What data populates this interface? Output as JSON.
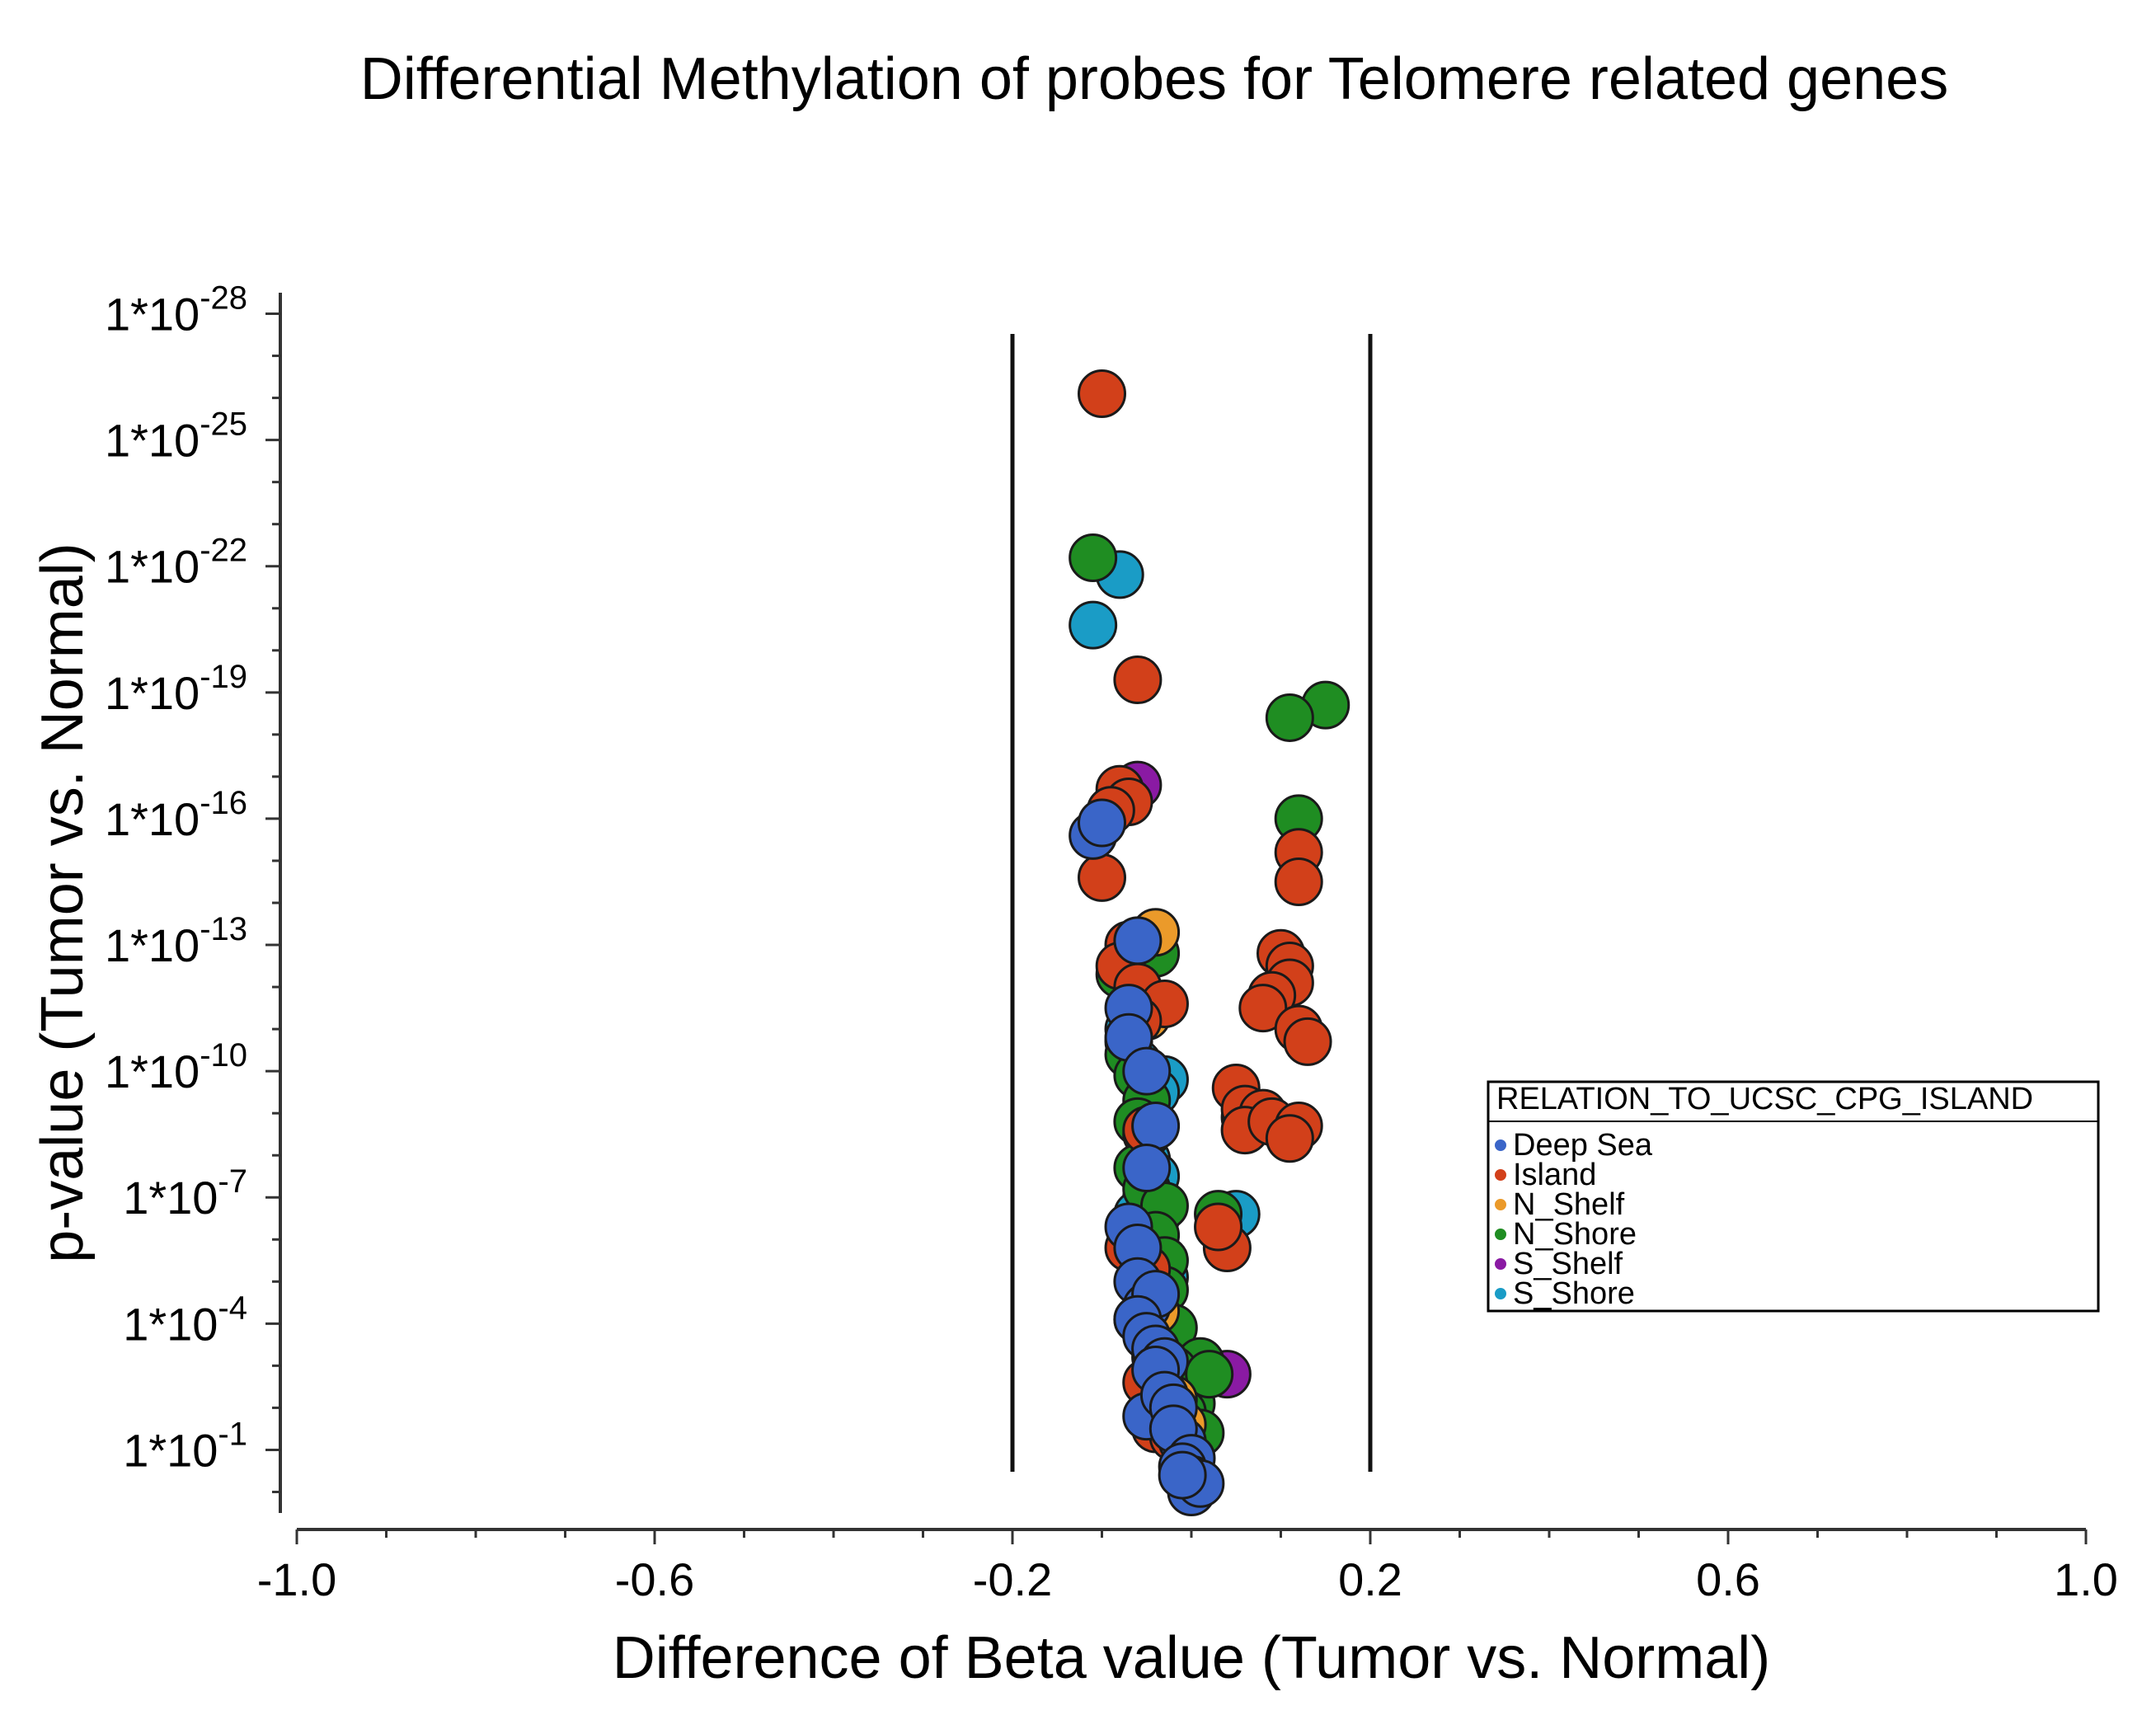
{
  "chart_data": {
    "type": "scatter",
    "title": "Differential Methylation of probes for Telomere related genes",
    "xlabel": "Difference of Beta value (Tumor vs. Normal)",
    "ylabel": "p-value (Tumor vs. Normal)",
    "xlim": [
      -1.0,
      1.0
    ],
    "ylim_neglog10": [
      -0.5,
      28.5
    ],
    "x_ticks": [
      "-1.0",
      "-0.6",
      "-0.2",
      "0.2",
      "0.6",
      "1.0"
    ],
    "x_tick_values": [
      -1.0,
      -0.6,
      -0.2,
      0.2,
      0.6,
      1.0
    ],
    "y_ticks": [
      {
        "base": "1*10",
        "exp": "-1",
        "neglog10": 1
      },
      {
        "base": "1*10",
        "exp": "-4",
        "neglog10": 4
      },
      {
        "base": "1*10",
        "exp": "-7",
        "neglog10": 7
      },
      {
        "base": "1*10",
        "exp": "-10",
        "neglog10": 10
      },
      {
        "base": "1*10",
        "exp": "-13",
        "neglog10": 13
      },
      {
        "base": "1*10",
        "exp": "-16",
        "neglog10": 16
      },
      {
        "base": "1*10",
        "exp": "-19",
        "neglog10": 19
      },
      {
        "base": "1*10",
        "exp": "-22",
        "neglog10": 22
      },
      {
        "base": "1*10",
        "exp": "-25",
        "neglog10": 25
      },
      {
        "base": "1*10",
        "exp": "-28",
        "neglog10": 28
      }
    ],
    "threshold_lines_x": [
      -0.2,
      0.2
    ],
    "legend": {
      "title": "RELATION_TO_UCSC_CPG_ISLAND",
      "position": "right",
      "entries": [
        {
          "name": "Deep Sea",
          "color": "#3a65c8"
        },
        {
          "name": "Island",
          "color": "#d2401a"
        },
        {
          "name": "N_Shelf",
          "color": "#eb9a2a"
        },
        {
          "name": "N_Shore",
          "color": "#1f8d22"
        },
        {
          "name": "S_Shelf",
          "color": "#8a1aa3"
        },
        {
          "name": "S_Shore",
          "color": "#1a9cc6"
        }
      ]
    },
    "series": [
      {
        "name": "Deep Sea",
        "points": [
          [
            -0.11,
            15.6
          ],
          [
            -0.1,
            15.9
          ],
          [
            -0.06,
            13.1
          ],
          [
            -0.07,
            11.5
          ],
          [
            -0.07,
            10.8
          ],
          [
            -0.05,
            10.0
          ],
          [
            -0.04,
            8.7
          ],
          [
            -0.05,
            7.7
          ],
          [
            -0.07,
            6.3
          ],
          [
            -0.06,
            5.8
          ],
          [
            -0.06,
            5.0
          ],
          [
            -0.05,
            4.4
          ],
          [
            -0.04,
            4.7
          ],
          [
            -0.06,
            4.1
          ],
          [
            -0.05,
            3.7
          ],
          [
            -0.04,
            3.4
          ],
          [
            -0.03,
            3.1
          ],
          [
            -0.04,
            2.9
          ],
          [
            -0.05,
            1.8
          ],
          [
            -0.03,
            2.3
          ],
          [
            -0.02,
            2.0
          ],
          [
            -0.01,
            1.2
          ],
          [
            -0.02,
            1.5
          ],
          [
            0.0,
            0.8
          ],
          [
            -0.01,
            0.6
          ],
          [
            0.0,
            0.3
          ],
          [
            0.0,
            0.0
          ],
          [
            0.01,
            0.2
          ],
          [
            -0.01,
            0.4
          ]
        ]
      },
      {
        "name": "Island",
        "points": [
          [
            -0.1,
            26.1
          ],
          [
            -0.06,
            19.3
          ],
          [
            -0.08,
            16.7
          ],
          [
            -0.07,
            16.4
          ],
          [
            -0.09,
            16.2
          ],
          [
            -0.1,
            14.6
          ],
          [
            -0.07,
            13.0
          ],
          [
            -0.08,
            12.5
          ],
          [
            -0.06,
            12.0
          ],
          [
            -0.03,
            11.6
          ],
          [
            -0.06,
            11.2
          ],
          [
            -0.05,
            8.6
          ],
          [
            -0.07,
            5.8
          ],
          [
            -0.05,
            5.3
          ],
          [
            -0.06,
            4.1
          ],
          [
            -0.04,
            3.2
          ],
          [
            -0.05,
            2.6
          ],
          [
            -0.03,
            2.2
          ],
          [
            -0.04,
            1.5
          ],
          [
            -0.02,
            1.3
          ],
          [
            0.05,
            9.6
          ],
          [
            0.06,
            9.1
          ],
          [
            0.08,
            9.0
          ],
          [
            0.06,
            8.6
          ],
          [
            0.09,
            8.8
          ],
          [
            0.12,
            8.7
          ],
          [
            0.11,
            8.4
          ],
          [
            0.1,
            12.8
          ],
          [
            0.11,
            12.5
          ],
          [
            0.11,
            12.1
          ],
          [
            0.09,
            11.8
          ],
          [
            0.08,
            11.5
          ],
          [
            0.12,
            11.0
          ],
          [
            0.13,
            10.7
          ],
          [
            0.12,
            15.2
          ],
          [
            0.12,
            14.5
          ],
          [
            0.04,
            5.8
          ],
          [
            0.03,
            6.3
          ]
        ]
      },
      {
        "name": "N_Shelf",
        "points": [
          [
            -0.04,
            13.3
          ],
          [
            -0.06,
            12.0
          ],
          [
            -0.05,
            11.3
          ],
          [
            -0.04,
            4.3
          ],
          [
            -0.02,
            2.2
          ],
          [
            -0.01,
            1.6
          ]
        ]
      },
      {
        "name": "N_Shore",
        "points": [
          [
            -0.11,
            22.2
          ],
          [
            0.15,
            18.7
          ],
          [
            0.11,
            18.4
          ],
          [
            0.12,
            16.0
          ],
          [
            -0.04,
            12.8
          ],
          [
            -0.08,
            12.3
          ],
          [
            -0.06,
            11.8
          ],
          [
            -0.07,
            10.4
          ],
          [
            -0.06,
            9.9
          ],
          [
            -0.05,
            9.3
          ],
          [
            -0.06,
            8.8
          ],
          [
            -0.05,
            8.5
          ],
          [
            -0.06,
            7.7
          ],
          [
            -0.05,
            7.2
          ],
          [
            -0.03,
            6.8
          ],
          [
            -0.04,
            6.1
          ],
          [
            -0.03,
            5.5
          ],
          [
            -0.05,
            5.2
          ],
          [
            -0.03,
            4.8
          ],
          [
            -0.02,
            3.9
          ],
          [
            0.01,
            3.1
          ],
          [
            -0.02,
            2.9
          ],
          [
            -0.01,
            2.5
          ],
          [
            0.0,
            2.1
          ],
          [
            -0.01,
            1.9
          ],
          [
            0.02,
            2.8
          ],
          [
            0.03,
            6.6
          ],
          [
            0.01,
            1.4
          ]
        ]
      },
      {
        "name": "S_Shelf",
        "points": [
          [
            -0.06,
            16.8
          ],
          [
            0.06,
            8.9
          ],
          [
            0.04,
            2.8
          ],
          [
            -0.02,
            2.0
          ],
          [
            -0.01,
            1.2
          ]
        ]
      },
      {
        "name": "S_Shore",
        "points": [
          [
            -0.08,
            21.8
          ],
          [
            -0.11,
            20.6
          ],
          [
            -0.05,
            12.9
          ],
          [
            -0.06,
            11.5
          ],
          [
            -0.07,
            11.0
          ],
          [
            -0.07,
            10.7
          ],
          [
            -0.06,
            10.2
          ],
          [
            -0.03,
            9.8
          ],
          [
            -0.04,
            9.5
          ],
          [
            -0.05,
            7.9
          ],
          [
            -0.04,
            7.5
          ],
          [
            -0.05,
            7.0
          ],
          [
            -0.06,
            6.6
          ],
          [
            -0.04,
            6.5
          ],
          [
            -0.05,
            5.7
          ],
          [
            -0.04,
            5.4
          ],
          [
            -0.03,
            5.1
          ],
          [
            -0.04,
            4.5
          ],
          [
            -0.03,
            3.6
          ],
          [
            -0.02,
            3.4
          ],
          [
            0.05,
            6.6
          ],
          [
            -0.01,
            1.8
          ],
          [
            0.0,
            1.1
          ]
        ]
      }
    ]
  }
}
